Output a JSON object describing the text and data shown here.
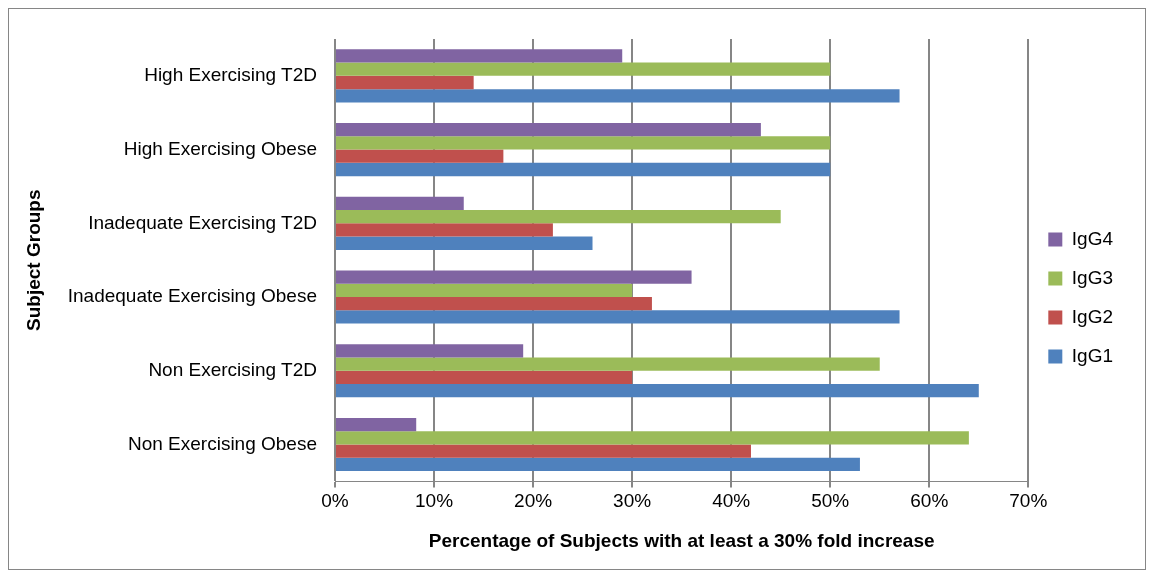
{
  "chart_data": {
    "type": "bar",
    "orientation": "horizontal",
    "xlabel": "Percentage of Subjects with at least a 30% fold increase",
    "ylabel": "Subject Groups",
    "categories": [
      "High Exercising T2D",
      "High Exercising Obese",
      "Inadequate Exercising T2D",
      "Inadequate Exercising Obese",
      "Non Exercising T2D",
      "Non Exercising Obese"
    ],
    "series": [
      {
        "name": "IgG4",
        "color": "#8064a2",
        "values": [
          29,
          43,
          13,
          36,
          19,
          8.2
        ]
      },
      {
        "name": "IgG3",
        "color": "#9bbb59",
        "values": [
          50,
          50,
          45,
          30,
          55,
          64
        ]
      },
      {
        "name": "IgG2",
        "color": "#c0504d",
        "values": [
          14,
          17,
          22,
          32,
          30,
          42
        ]
      },
      {
        "name": "IgG1",
        "color": "#4f81bd",
        "values": [
          57,
          50,
          26,
          57,
          65,
          53
        ]
      }
    ],
    "xlim": [
      0,
      70
    ],
    "xticks": [
      {
        "value": 0,
        "label": "0%"
      },
      {
        "value": 10,
        "label": "10%"
      },
      {
        "value": 20,
        "label": "20%"
      },
      {
        "value": 30,
        "label": "30%"
      },
      {
        "value": 40,
        "label": "40%"
      },
      {
        "value": 50,
        "label": "50%"
      },
      {
        "value": 60,
        "label": "60%"
      },
      {
        "value": 70,
        "label": "70%"
      }
    ],
    "grid": "x",
    "legend": "right"
  }
}
